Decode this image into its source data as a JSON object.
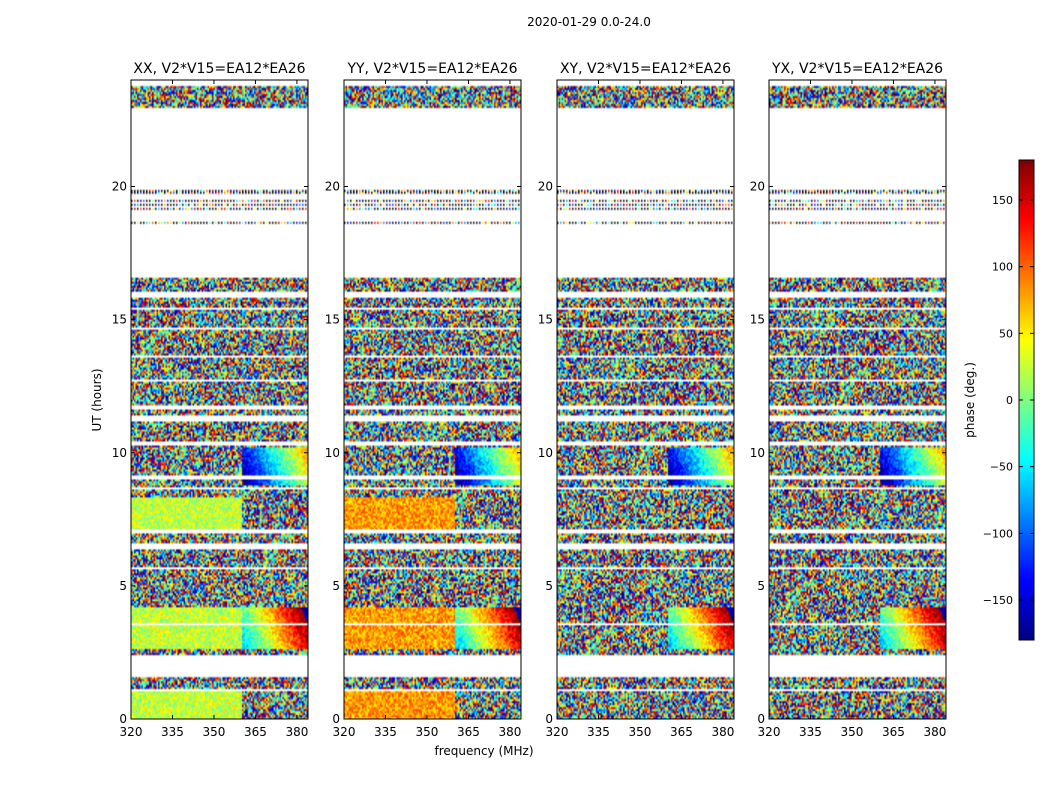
{
  "figure": {
    "suptitle": "2020-01-29 0.0-24.0",
    "xlabel": "frequency (MHz)",
    "ylabel": "UT (hours)"
  },
  "chart_data": [
    {
      "type": "heatmap",
      "title": "XX, V2*V15=EA12*EA26",
      "x_ticks": [
        320,
        335,
        350,
        365,
        380
      ],
      "y_ticks": [
        0,
        5,
        10,
        15,
        20
      ],
      "xlim": [
        320,
        384
      ],
      "ylim": [
        0,
        24
      ],
      "low_freq_region": {
        "x_range": [
          320,
          360
        ],
        "dominant_phase_deg": 25
      }
    },
    {
      "type": "heatmap",
      "title": "YY, V2*V15=EA12*EA26",
      "x_ticks": [
        320,
        335,
        350,
        365,
        380
      ],
      "y_ticks": [
        0,
        5,
        10,
        15,
        20
      ],
      "xlim": [
        320,
        384
      ],
      "ylim": [
        0,
        24
      ],
      "low_freq_region": {
        "x_range": [
          320,
          360
        ],
        "dominant_phase_deg": 80
      }
    },
    {
      "type": "heatmap",
      "title": "XY, V2*V15=EA12*EA26",
      "x_ticks": [
        320,
        335,
        350,
        365,
        380
      ],
      "y_ticks": [
        0,
        5,
        10,
        15,
        20
      ],
      "xlim": [
        320,
        384
      ],
      "ylim": [
        0,
        24
      ],
      "low_freq_region": null
    },
    {
      "type": "heatmap",
      "title": "YX, V2*V15=EA12*EA26",
      "x_ticks": [
        320,
        335,
        350,
        365,
        380
      ],
      "y_ticks": [
        0,
        5,
        10,
        15,
        20
      ],
      "xlim": [
        320,
        384
      ],
      "ylim": [
        0,
        24
      ],
      "low_freq_region": null
    }
  ],
  "colorbar": {
    "label": "phase (deg.)",
    "range": [
      -180,
      180
    ],
    "ticks": [
      -150,
      -100,
      -50,
      0,
      50,
      100,
      150
    ],
    "colormap": "jet"
  },
  "time_coverage": {
    "data_bands_hours": [
      [
        0.0,
        1.05
      ],
      [
        1.15,
        1.6
      ],
      [
        2.4,
        6.4
      ],
      [
        6.6,
        11.2
      ],
      [
        11.4,
        16.6
      ],
      [
        22.95,
        23.8
      ]
    ],
    "gaps_hours": [
      [
        1.6,
        2.4
      ],
      [
        3.5,
        3.6
      ],
      [
        5.65,
        5.72
      ],
      [
        7.0,
        7.12
      ],
      [
        8.6,
        8.7
      ],
      [
        9.0,
        9.15
      ],
      [
        10.3,
        10.4
      ],
      [
        11.6,
        11.8
      ],
      [
        12.65,
        12.75
      ],
      [
        13.55,
        13.65
      ],
      [
        14.6,
        14.7
      ],
      [
        15.35,
        15.45
      ],
      [
        15.85,
        16.05
      ],
      [
        16.6,
        22.95
      ]
    ],
    "sparse_lines_hours": [
      18.7,
      19.2,
      19.35,
      19.5,
      19.8,
      19.9
    ]
  }
}
